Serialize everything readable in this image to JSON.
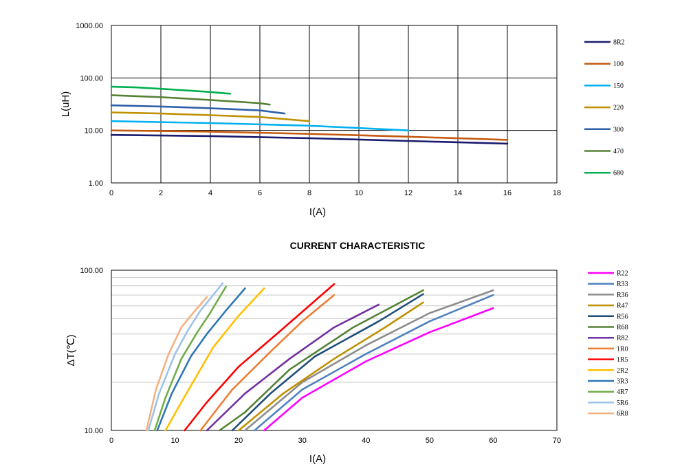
{
  "chart_data": [
    {
      "type": "line",
      "title": "",
      "xlabel": "I(A)",
      "ylabel": "L(uH)",
      "xlim": [
        0,
        18
      ],
      "ylim": [
        1,
        1000
      ],
      "yscale": "log",
      "xticks": [
        "0",
        "2",
        "4",
        "6",
        "8",
        "10",
        "12",
        "14",
        "16",
        "18"
      ],
      "yticks": [
        "1.00",
        "10.00",
        "100.00",
        "1000.00"
      ],
      "grid": true,
      "legend": "right",
      "series": [
        {
          "name": "8R2",
          "color": "#1a1a6e",
          "x": [
            0,
            4,
            8,
            12,
            16
          ],
          "y": [
            8.2,
            7.8,
            7.1,
            6.3,
            5.6
          ]
        },
        {
          "name": "100",
          "color": "#c55a11",
          "x": [
            0,
            4,
            8,
            12,
            16
          ],
          "y": [
            10,
            9.5,
            8.6,
            7.6,
            6.6
          ]
        },
        {
          "name": "150",
          "color": "#00b0f0",
          "x": [
            0,
            4,
            8,
            12
          ],
          "y": [
            15,
            13.8,
            12.3,
            10
          ]
        },
        {
          "name": "220",
          "color": "#bf9000",
          "x": [
            0,
            2,
            4,
            6,
            8
          ],
          "y": [
            22,
            21,
            19.5,
            18,
            15
          ]
        },
        {
          "name": "300",
          "color": "#2e5fa8",
          "x": [
            0,
            2,
            4,
            6,
            7
          ],
          "y": [
            30,
            28.5,
            26.5,
            24,
            21
          ]
        },
        {
          "name": "470",
          "color": "#548235",
          "x": [
            0,
            2,
            4,
            6,
            6.4
          ],
          "y": [
            47,
            43,
            38,
            33,
            31
          ]
        },
        {
          "name": "680",
          "color": "#00b050",
          "x": [
            0,
            1,
            2,
            3,
            4,
            4.8
          ],
          "y": [
            68,
            66,
            62,
            58,
            54,
            50
          ]
        }
      ]
    },
    {
      "type": "line",
      "title": "CURRENT CHARACTERISTIC",
      "xlabel": "I(A)",
      "ylabel": "ΔT(℃)",
      "xlim": [
        0,
        70
      ],
      "ylim": [
        10,
        100
      ],
      "yscale": "log",
      "xticks": [
        "0",
        "10",
        "20",
        "30",
        "40",
        "50",
        "60",
        "70"
      ],
      "yticks": [
        "10.00",
        "100.00"
      ],
      "grid": true,
      "legend": "right",
      "series": [
        {
          "name": "R22",
          "color": "#ff00ff",
          "x": [
            24,
            30,
            40,
            50,
            60
          ],
          "y": [
            10,
            16,
            27,
            41,
            58
          ]
        },
        {
          "name": "R33",
          "color": "#4f81bd",
          "x": [
            22.5,
            30,
            40,
            50,
            60
          ],
          "y": [
            10,
            18,
            30,
            48,
            70
          ]
        },
        {
          "name": "R36",
          "color": "#8c8c8c",
          "x": [
            21,
            30,
            40,
            50,
            60
          ],
          "y": [
            10,
            20,
            34,
            54,
            75
          ]
        },
        {
          "name": "R47",
          "color": "#bf9000",
          "x": [
            20,
            27,
            35,
            43,
            49
          ],
          "y": [
            10,
            17,
            28,
            44,
            63
          ]
        },
        {
          "name": "R56",
          "color": "#1f4e79",
          "x": [
            19,
            25,
            32,
            42,
            49
          ],
          "y": [
            10,
            17,
            29,
            48,
            71
          ]
        },
        {
          "name": "R68",
          "color": "#548235",
          "x": [
            17,
            21,
            28,
            38,
            49
          ],
          "y": [
            10,
            13,
            24,
            44,
            75
          ]
        },
        {
          "name": "R82",
          "color": "#7030a0",
          "x": [
            15,
            21,
            28,
            35,
            42
          ],
          "y": [
            10,
            17,
            28,
            44,
            61
          ]
        },
        {
          "name": "1R0",
          "color": "#ed7d31",
          "x": [
            14,
            19,
            25,
            30,
            35
          ],
          "y": [
            10,
            18,
            31,
            48,
            70
          ]
        },
        {
          "name": "1R5",
          "color": "#ff0000",
          "x": [
            11.5,
            15,
            20,
            25,
            30,
            35
          ],
          "y": [
            10,
            15,
            25,
            37,
            55,
            82
          ]
        },
        {
          "name": "2R2",
          "color": "#ffc000",
          "x": [
            8.5,
            11,
            16,
            20,
            24
          ],
          "y": [
            10,
            15,
            33,
            52,
            77
          ]
        },
        {
          "name": "3R3",
          "color": "#2e75b6",
          "x": [
            7.2,
            9.5,
            12.5,
            15,
            18,
            21
          ],
          "y": [
            10,
            17,
            29,
            40,
            56,
            77
          ]
        },
        {
          "name": "4R7",
          "color": "#70ad47",
          "x": [
            6.8,
            8.5,
            11,
            13.5,
            15.5,
            18
          ],
          "y": [
            10,
            16,
            28,
            41,
            54,
            79
          ]
        },
        {
          "name": "5R6",
          "color": "#9dc3e6",
          "x": [
            5.8,
            7.5,
            10,
            12,
            14,
            17.5
          ],
          "y": [
            10,
            17,
            30,
            42,
            56,
            83
          ]
        },
        {
          "name": "6R8",
          "color": "#f4b183",
          "x": [
            5.5,
            7,
            9,
            11,
            13,
            15
          ],
          "y": [
            10,
            18,
            30,
            44,
            55,
            68
          ]
        }
      ]
    }
  ]
}
